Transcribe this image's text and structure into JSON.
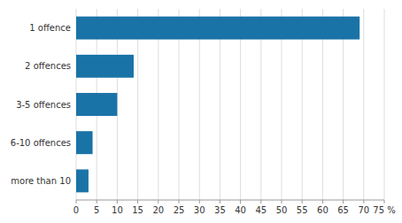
{
  "chart_data": {
    "type": "bar",
    "orientation": "horizontal",
    "categories": [
      "1 offence",
      "2 offences",
      "3-5 offences",
      "6-10 offences",
      "more than 10"
    ],
    "values": [
      69.0,
      14.0,
      10.0,
      4.0,
      3.0
    ],
    "color": "#1a73a7",
    "xlim": [
      0,
      75
    ],
    "xticks": [
      0,
      5,
      10,
      15,
      20,
      25,
      30,
      35,
      40,
      45,
      50,
      55,
      60,
      65,
      70,
      {
        "value": 75,
        "label": "75 %"
      }
    ],
    "grid": true
  }
}
